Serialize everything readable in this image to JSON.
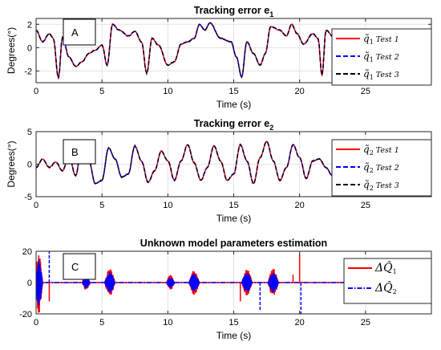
{
  "chart_data": [
    {
      "type": "line",
      "title": "Tracking error e",
      "title_sub": "1",
      "xlabel": "Time (s)",
      "ylabel": "Degrees(°)",
      "xlim": [
        0,
        30
      ],
      "ylim": [
        -3,
        2.5
      ],
      "xticks": [
        0,
        5,
        10,
        15,
        20,
        25
      ],
      "yticks": [
        -2,
        0,
        2
      ],
      "grid": true,
      "legend_position": "top-right",
      "annotation": "A",
      "series": [
        {
          "sym": "q̃",
          "sub": "1",
          "name": "Test 1",
          "color": "#ff0000",
          "style": "solid"
        },
        {
          "sym": "q̃",
          "sub": "1",
          "name": "Test 2",
          "color": "#0000ff",
          "style": "dashed"
        },
        {
          "sym": "q̃",
          "sub": "1",
          "name": "Test 3",
          "color": "#000000",
          "style": "dashed"
        }
      ],
      "x": [
        0,
        0.5,
        1,
        1.3,
        1.7,
        2,
        2.5,
        3,
        3.5,
        4,
        4.5,
        5,
        5.4,
        5.8,
        6.3,
        7,
        7.5,
        8,
        8.4,
        8.8,
        9.3,
        10,
        10.5,
        11,
        11.5,
        12,
        12.4,
        12.8,
        13.2,
        14,
        14.8,
        15.2,
        15.6,
        16,
        16.5,
        17,
        17.4,
        17.8,
        18.5,
        19,
        19.4,
        19.8,
        20.3,
        21,
        21.4,
        21.7,
        22,
        22.5
      ],
      "values": [
        1.5,
        0.5,
        1.2,
        0.8,
        -2.6,
        0.9,
        -0.8,
        -1.6,
        -1.2,
        -0.5,
        -0.2,
        0.2,
        -1.5,
        2.0,
        1.5,
        1.0,
        1.4,
        0.5,
        -2.2,
        0.8,
        0.2,
        -1.5,
        -1.2,
        0.3,
        0.5,
        0.8,
        2.0,
        1.5,
        2.1,
        0.8,
        0.5,
        -0.8,
        -2.5,
        0.5,
        -0.5,
        -1.5,
        -0.5,
        1.8,
        1.5,
        1.0,
        2.0,
        1.2,
        0.3,
        1.2,
        0.8,
        -2.4,
        1.5,
        1.0
      ]
    },
    {
      "type": "line",
      "title": "Tracking error e",
      "title_sub": "2",
      "xlabel": "Time (s)",
      "ylabel": "Degrees(°)",
      "xlim": [
        0,
        30
      ],
      "ylim": [
        -5,
        5
      ],
      "xticks": [
        0,
        5,
        10,
        15,
        20,
        25
      ],
      "yticks": [
        -5,
        0,
        5
      ],
      "grid": true,
      "legend_position": "top-right",
      "annotation": "B",
      "series": [
        {
          "sym": "q̃",
          "sub": "2",
          "name": "Test 1",
          "color": "#ff0000",
          "style": "solid"
        },
        {
          "sym": "q̃",
          "sub": "2",
          "name": "Test 2",
          "color": "#0000ff",
          "style": "dashed"
        },
        {
          "sym": "q̃",
          "sub": "2",
          "name": "Test 3",
          "color": "#000000",
          "style": "dashed"
        }
      ],
      "x": [
        0,
        0.5,
        1,
        1.5,
        2,
        2.5,
        3,
        3.5,
        4,
        4.5,
        5,
        5.5,
        6,
        6.5,
        7,
        7.5,
        8,
        8.5,
        9,
        9.5,
        10,
        10.5,
        11,
        11.5,
        12,
        12.5,
        13,
        13.5,
        14,
        14.5,
        15,
        15.5,
        16,
        16.5,
        17,
        17.5,
        18,
        18.5,
        19,
        19.5,
        20,
        20.5,
        21,
        21.5,
        22,
        22.5
      ],
      "values": [
        -0.5,
        0.8,
        -0.5,
        0.3,
        -1,
        1.2,
        -1.8,
        3.2,
        0.5,
        -3,
        -2.5,
        2.5,
        0.8,
        -2,
        -1.5,
        2.8,
        0.5,
        -2.8,
        -1,
        2,
        0.5,
        -2.5,
        0.5,
        3,
        0.2,
        -2.5,
        -0.5,
        2.8,
        0.5,
        -2.5,
        -1.5,
        3,
        0.5,
        -3,
        1,
        3.5,
        0.5,
        -2.5,
        -0.5,
        3,
        1,
        -2.2,
        0.5,
        0.8,
        -0.5,
        -1.8
      ]
    },
    {
      "type": "line",
      "title": "Unknown model parameters estimation",
      "xlabel": "Time (s)",
      "ylabel": "",
      "xlim": [
        0,
        30
      ],
      "ylim": [
        -20,
        20
      ],
      "xticks": [
        0,
        5,
        10,
        15,
        20,
        25
      ],
      "yticks": [
        -20,
        0,
        20
      ],
      "grid": true,
      "legend_position": "top-right",
      "annotation": "C",
      "series": [
        {
          "sym": "ΔQ̂",
          "sub": "1",
          "color": "#ff0000",
          "style": "solid"
        },
        {
          "sym": "ΔQ̂",
          "sub": "2",
          "color": "#0000ff",
          "style": "dashdot"
        }
      ],
      "bursts": [
        {
          "t": 0.2,
          "half_width": 0.3,
          "amp": 20
        },
        {
          "t": 3.8,
          "half_width": 0.3,
          "amp": 5
        },
        {
          "t": 5.6,
          "half_width": 0.4,
          "amp": 9
        },
        {
          "t": 10.2,
          "half_width": 0.3,
          "amp": 5
        },
        {
          "t": 12.0,
          "half_width": 0.4,
          "amp": 8
        },
        {
          "t": 16.0,
          "half_width": 0.4,
          "amp": 9
        },
        {
          "t": 18.0,
          "half_width": 0.4,
          "amp": 9
        }
      ],
      "spikes": [
        {
          "series": 0,
          "t": 1.0,
          "v": -12
        },
        {
          "series": 1,
          "t": 1.0,
          "v": 20
        },
        {
          "series": 0,
          "t": 15.5,
          "v": -12
        },
        {
          "series": 1,
          "t": 17.0,
          "v": -18
        },
        {
          "series": 0,
          "t": 19.5,
          "v": 5
        },
        {
          "series": 0,
          "t": 20.0,
          "v": 18
        },
        {
          "series": 1,
          "t": 20.1,
          "v": -20
        }
      ]
    }
  ]
}
